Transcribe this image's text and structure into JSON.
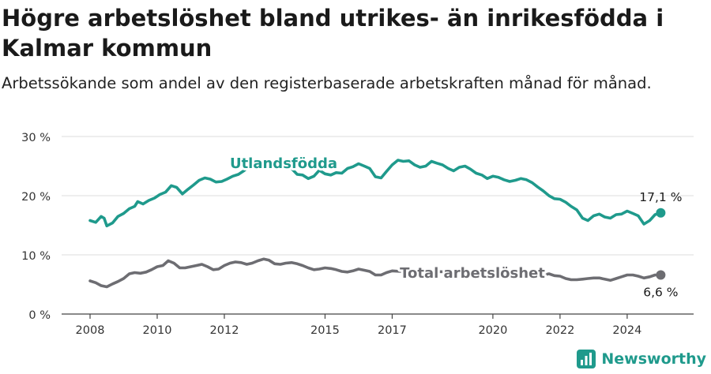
{
  "header": {
    "title": "Högre arbetslöshet bland utrikes- än inrikesfödda i Kalmar kommun",
    "subtitle": "Arbetssökande som andel av den registerbaserade arbetskraften månad för månad."
  },
  "brand": {
    "name": "Newsworthy",
    "icon": "newsworthy-logo-icon",
    "color": "#1f9a8c"
  },
  "chart_data": {
    "type": "line",
    "y_ticks": [
      "0 %",
      "10 %",
      "20 %",
      "30 %"
    ],
    "ylim": [
      0,
      30
    ],
    "x_ticks": [
      "2008",
      "2010",
      "2012",
      "2015",
      "2017",
      "2020",
      "2022",
      "2024"
    ],
    "xlim": [
      2008,
      2025.25
    ],
    "grid": true,
    "series": [
      {
        "name": "Utlandsfödda",
        "color": "#1f9a8c",
        "end_label": "17,1 %",
        "points": [
          [
            2008.0,
            15.8
          ],
          [
            2008.17,
            15.5
          ],
          [
            2008.33,
            16.5
          ],
          [
            2008.42,
            16.2
          ],
          [
            2008.5,
            14.9
          ],
          [
            2008.67,
            15.4
          ],
          [
            2008.83,
            16.5
          ],
          [
            2009.0,
            17.0
          ],
          [
            2009.17,
            17.8
          ],
          [
            2009.33,
            18.2
          ],
          [
            2009.42,
            19.0
          ],
          [
            2009.58,
            18.6
          ],
          [
            2009.75,
            19.2
          ],
          [
            2009.92,
            19.6
          ],
          [
            2010.08,
            20.2
          ],
          [
            2010.25,
            20.6
          ],
          [
            2010.42,
            21.7
          ],
          [
            2010.58,
            21.4
          ],
          [
            2010.75,
            20.3
          ],
          [
            2010.92,
            21.1
          ],
          [
            2011.08,
            21.8
          ],
          [
            2011.25,
            22.6
          ],
          [
            2011.42,
            23.0
          ],
          [
            2011.58,
            22.8
          ],
          [
            2011.75,
            22.3
          ],
          [
            2011.92,
            22.4
          ],
          [
            2012.08,
            22.8
          ],
          [
            2012.25,
            23.3
          ],
          [
            2012.42,
            23.6
          ],
          [
            2012.58,
            24.2
          ],
          [
            2012.75,
            25.0
          ],
          [
            2013.0,
            25.2
          ],
          [
            2013.25,
            25.3
          ],
          [
            2013.5,
            25.0
          ],
          [
            2013.75,
            24.8
          ],
          [
            2014.0,
            24.6
          ],
          [
            2014.17,
            23.6
          ],
          [
            2014.33,
            23.5
          ],
          [
            2014.5,
            22.9
          ],
          [
            2014.67,
            23.3
          ],
          [
            2014.83,
            24.3
          ],
          [
            2015.0,
            23.7
          ],
          [
            2015.17,
            23.5
          ],
          [
            2015.33,
            23.9
          ],
          [
            2015.5,
            23.8
          ],
          [
            2015.67,
            24.6
          ],
          [
            2015.83,
            24.9
          ],
          [
            2016.0,
            25.4
          ],
          [
            2016.17,
            25.0
          ],
          [
            2016.33,
            24.6
          ],
          [
            2016.5,
            23.2
          ],
          [
            2016.67,
            23.0
          ],
          [
            2016.83,
            24.1
          ],
          [
            2017.0,
            25.2
          ],
          [
            2017.17,
            26.0
          ],
          [
            2017.33,
            25.8
          ],
          [
            2017.5,
            25.9
          ],
          [
            2017.67,
            25.2
          ],
          [
            2017.83,
            24.8
          ],
          [
            2018.0,
            25.0
          ],
          [
            2018.17,
            25.8
          ],
          [
            2018.33,
            25.5
          ],
          [
            2018.5,
            25.2
          ],
          [
            2018.67,
            24.6
          ],
          [
            2018.83,
            24.2
          ],
          [
            2019.0,
            24.8
          ],
          [
            2019.17,
            25.0
          ],
          [
            2019.33,
            24.5
          ],
          [
            2019.5,
            23.8
          ],
          [
            2019.67,
            23.5
          ],
          [
            2019.83,
            22.9
          ],
          [
            2020.0,
            23.3
          ],
          [
            2020.17,
            23.1
          ],
          [
            2020.33,
            22.7
          ],
          [
            2020.5,
            22.4
          ],
          [
            2020.67,
            22.6
          ],
          [
            2020.83,
            22.9
          ],
          [
            2021.0,
            22.7
          ],
          [
            2021.17,
            22.2
          ],
          [
            2021.33,
            21.5
          ],
          [
            2021.5,
            20.8
          ],
          [
            2021.67,
            20.0
          ],
          [
            2021.83,
            19.5
          ],
          [
            2022.0,
            19.4
          ],
          [
            2022.17,
            18.9
          ],
          [
            2022.33,
            18.2
          ],
          [
            2022.5,
            17.6
          ],
          [
            2022.67,
            16.2
          ],
          [
            2022.83,
            15.8
          ],
          [
            2023.0,
            16.6
          ],
          [
            2023.17,
            16.9
          ],
          [
            2023.33,
            16.4
          ],
          [
            2023.5,
            16.2
          ],
          [
            2023.67,
            16.8
          ],
          [
            2023.83,
            16.9
          ],
          [
            2024.0,
            17.4
          ],
          [
            2024.17,
            17.0
          ],
          [
            2024.33,
            16.6
          ],
          [
            2024.5,
            15.2
          ],
          [
            2024.67,
            15.8
          ],
          [
            2024.83,
            16.8
          ],
          [
            2025.0,
            17.1
          ]
        ]
      },
      {
        "name": "Total arbetslöshet",
        "color": "#6d6d72",
        "end_label": "6,6 %",
        "points": [
          [
            2008.0,
            5.6
          ],
          [
            2008.17,
            5.3
          ],
          [
            2008.33,
            4.8
          ],
          [
            2008.5,
            4.6
          ],
          [
            2008.67,
            5.1
          ],
          [
            2008.83,
            5.5
          ],
          [
            2009.0,
            6.0
          ],
          [
            2009.17,
            6.8
          ],
          [
            2009.33,
            7.0
          ],
          [
            2009.5,
            6.9
          ],
          [
            2009.67,
            7.1
          ],
          [
            2009.83,
            7.5
          ],
          [
            2010.0,
            8.0
          ],
          [
            2010.17,
            8.2
          ],
          [
            2010.33,
            9.0
          ],
          [
            2010.5,
            8.6
          ],
          [
            2010.67,
            7.8
          ],
          [
            2010.83,
            7.8
          ],
          [
            2011.0,
            8.0
          ],
          [
            2011.17,
            8.2
          ],
          [
            2011.33,
            8.4
          ],
          [
            2011.5,
            8.0
          ],
          [
            2011.67,
            7.5
          ],
          [
            2011.83,
            7.6
          ],
          [
            2012.0,
            8.2
          ],
          [
            2012.17,
            8.6
          ],
          [
            2012.33,
            8.8
          ],
          [
            2012.5,
            8.7
          ],
          [
            2012.67,
            8.4
          ],
          [
            2012.83,
            8.6
          ],
          [
            2013.0,
            9.0
          ],
          [
            2013.17,
            9.3
          ],
          [
            2013.33,
            9.1
          ],
          [
            2013.5,
            8.5
          ],
          [
            2013.67,
            8.4
          ],
          [
            2013.83,
            8.6
          ],
          [
            2014.0,
            8.7
          ],
          [
            2014.17,
            8.5
          ],
          [
            2014.33,
            8.2
          ],
          [
            2014.5,
            7.8
          ],
          [
            2014.67,
            7.5
          ],
          [
            2014.83,
            7.6
          ],
          [
            2015.0,
            7.8
          ],
          [
            2015.17,
            7.7
          ],
          [
            2015.33,
            7.5
          ],
          [
            2015.5,
            7.2
          ],
          [
            2015.67,
            7.1
          ],
          [
            2015.83,
            7.3
          ],
          [
            2016.0,
            7.6
          ],
          [
            2016.17,
            7.4
          ],
          [
            2016.33,
            7.2
          ],
          [
            2016.5,
            6.6
          ],
          [
            2016.67,
            6.6
          ],
          [
            2016.83,
            7.0
          ],
          [
            2017.0,
            7.3
          ],
          [
            2017.25,
            7.2
          ],
          [
            2017.5,
            7.3
          ],
          [
            2018.0,
            7.2
          ],
          [
            2019.0,
            7.1
          ],
          [
            2020.0,
            7.0
          ],
          [
            2021.0,
            6.9
          ],
          [
            2021.17,
            6.8
          ],
          [
            2021.33,
            6.7
          ],
          [
            2021.5,
            6.6
          ],
          [
            2021.67,
            6.8
          ],
          [
            2021.83,
            6.5
          ],
          [
            2022.0,
            6.4
          ],
          [
            2022.17,
            6.0
          ],
          [
            2022.33,
            5.8
          ],
          [
            2022.5,
            5.8
          ],
          [
            2022.67,
            5.9
          ],
          [
            2022.83,
            6.0
          ],
          [
            2023.0,
            6.1
          ],
          [
            2023.17,
            6.1
          ],
          [
            2023.33,
            5.9
          ],
          [
            2023.5,
            5.7
          ],
          [
            2023.67,
            6.0
          ],
          [
            2023.83,
            6.3
          ],
          [
            2024.0,
            6.6
          ],
          [
            2024.17,
            6.6
          ],
          [
            2024.33,
            6.4
          ],
          [
            2024.5,
            6.1
          ],
          [
            2024.67,
            6.3
          ],
          [
            2024.83,
            6.6
          ],
          [
            2025.0,
            6.6
          ]
        ]
      }
    ]
  }
}
